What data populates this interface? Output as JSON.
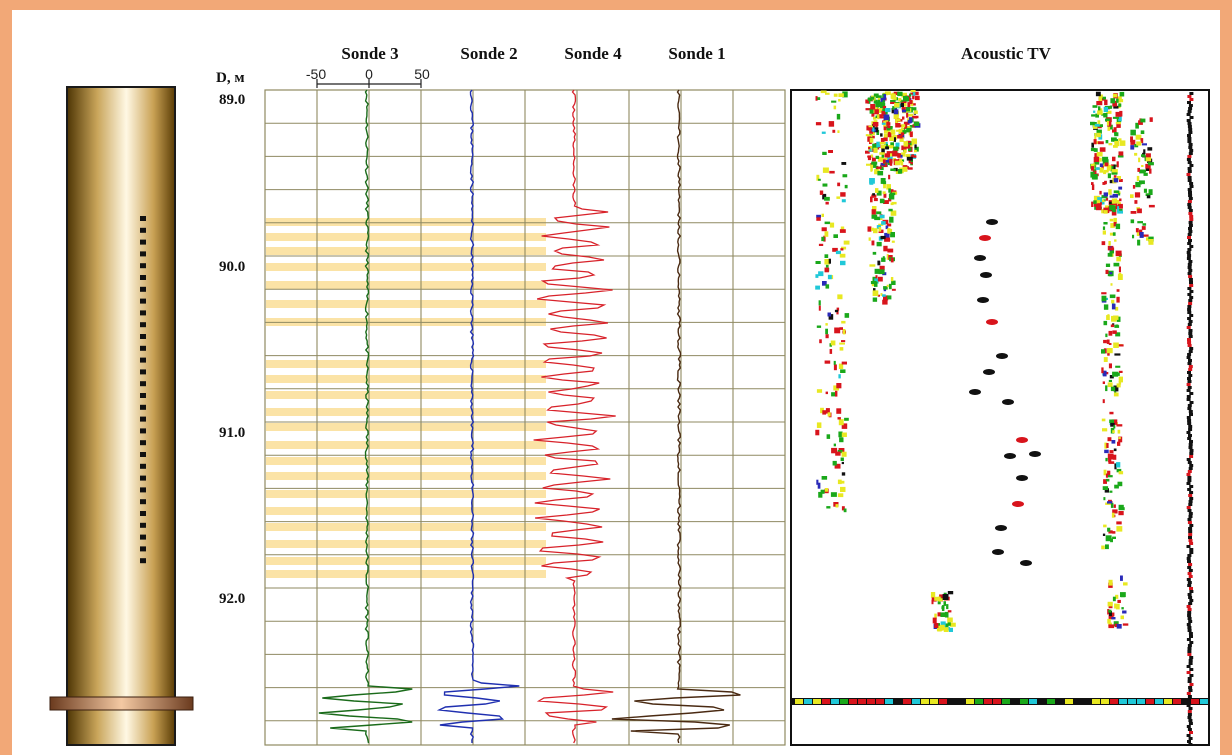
{
  "headers": {
    "sonde3": "Sonde 3",
    "sonde2": "Sonde 2",
    "sonde4": "Sonde 4",
    "sonde1": "Sonde 1",
    "acoustic": "Acoustic TV"
  },
  "axis": {
    "depth_label": "D, м",
    "scale_ticks": [
      "-50",
      "0",
      "50"
    ],
    "depth_ticks": [
      "89.0",
      "90.0",
      "91.0",
      "92.0"
    ]
  },
  "colors": {
    "frame": "#f2a877",
    "sonde3": "#1a6b1a",
    "sonde2": "#1f2fb0",
    "sonde4": "#d8222a",
    "sonde1": "#4a2a12",
    "highlight": "#fbe3a6",
    "grid": "#8f8a62",
    "pipe_dark": "#5a3d05",
    "pipe_light": "#fff6dc"
  }
}
